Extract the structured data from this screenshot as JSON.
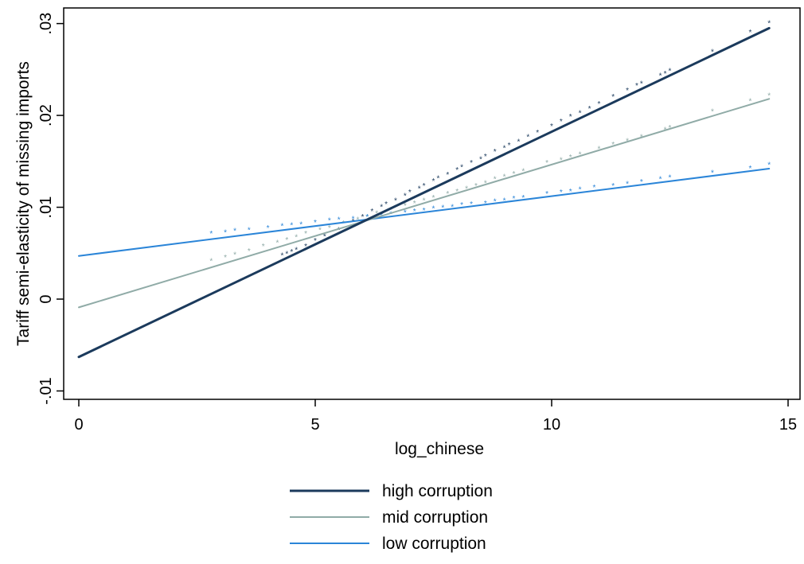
{
  "chart_data": {
    "type": "line",
    "xlabel": "log_chinese",
    "ylabel": "Tariff semi-elasticity of missing imports",
    "xlim": [
      0,
      15
    ],
    "ylim": [
      -0.012,
      0.031
    ],
    "xticks": [
      0,
      5,
      10,
      15
    ],
    "xtick_labels": [
      "0",
      "5",
      "10",
      "15"
    ],
    "yticks": [
      -0.01,
      0,
      0.01,
      0.02,
      0.03
    ],
    "ytick_labels": [
      "-.01",
      "0",
      ".01",
      ".02",
      ".03"
    ],
    "grid": false,
    "legend_position": "bottom",
    "series": [
      {
        "name": "high corruption",
        "color": "#1b3a5c",
        "line_width": 3,
        "fit": {
          "x": [
            0,
            14.6
          ],
          "y": [
            -0.0063,
            0.0295
          ]
        },
        "points": {
          "x": [
            4.3,
            4.4,
            4.5,
            4.6,
            4.8,
            5.0,
            5.2,
            5.5,
            5.8,
            6.0,
            6.2,
            6.4,
            6.5,
            6.7,
            6.9,
            7.0,
            7.2,
            7.3,
            7.5,
            7.6,
            7.8,
            8.0,
            8.1,
            8.3,
            8.5,
            8.6,
            8.8,
            9.0,
            9.1,
            9.3,
            9.5,
            9.7,
            10.0,
            10.2,
            10.4,
            10.6,
            10.8,
            11.0,
            11.3,
            11.6,
            11.8,
            11.9,
            12.3,
            12.4,
            12.5,
            13.4,
            14.2,
            14.6
          ],
          "y": [
            0.0048,
            0.005,
            0.0052,
            0.0054,
            0.0058,
            0.0064,
            0.0069,
            0.0076,
            0.0085,
            0.009,
            0.0096,
            0.0101,
            0.0104,
            0.0108,
            0.0113,
            0.0117,
            0.0121,
            0.0124,
            0.0129,
            0.0132,
            0.0136,
            0.0141,
            0.0144,
            0.0149,
            0.0153,
            0.0156,
            0.0161,
            0.0165,
            0.0168,
            0.0172,
            0.0177,
            0.0182,
            0.0189,
            0.0194,
            0.0199,
            0.0203,
            0.0208,
            0.0213,
            0.0221,
            0.0228,
            0.0233,
            0.0235,
            0.0244,
            0.0246,
            0.0249,
            0.027,
            0.0291,
            0.0301
          ]
        }
      },
      {
        "name": "mid corruption",
        "color": "#90aba7",
        "line_width": 2,
        "fit": {
          "x": [
            0,
            14.6
          ],
          "y": [
            -0.0009,
            0.0218
          ]
        },
        "points": {
          "x": [
            2.8,
            3.1,
            3.3,
            3.6,
            3.9,
            4.2,
            4.4,
            4.6,
            4.8,
            5.1,
            5.3,
            5.6,
            5.9,
            6.1,
            6.3,
            6.6,
            6.9,
            7.1,
            7.3,
            7.5,
            7.8,
            8.0,
            8.2,
            8.4,
            8.6,
            8.8,
            9.0,
            9.2,
            9.4,
            9.9,
            10.2,
            10.4,
            10.6,
            11.0,
            11.3,
            11.6,
            11.9,
            12.4,
            12.5,
            13.4,
            14.2,
            14.6
          ],
          "y": [
            0.0042,
            0.0046,
            0.0049,
            0.0053,
            0.0058,
            0.0062,
            0.0065,
            0.0068,
            0.0072,
            0.0076,
            0.0078,
            0.0083,
            0.0087,
            0.009,
            0.0094,
            0.0098,
            0.0102,
            0.0105,
            0.0108,
            0.0111,
            0.0115,
            0.0118,
            0.0121,
            0.0124,
            0.0127,
            0.0131,
            0.0134,
            0.0137,
            0.014,
            0.0149,
            0.0152,
            0.0155,
            0.0158,
            0.0164,
            0.0169,
            0.0173,
            0.0177,
            0.0185,
            0.0187,
            0.0205,
            0.0216,
            0.0222
          ]
        }
      },
      {
        "name": "low corruption",
        "color": "#2b85d8",
        "line_width": 2,
        "fit": {
          "x": [
            0,
            14.6
          ],
          "y": [
            0.0047,
            0.0142
          ]
        },
        "points": {
          "x": [
            2.8,
            3.1,
            3.3,
            3.6,
            4.0,
            4.3,
            4.5,
            4.7,
            5.0,
            5.3,
            5.5,
            5.8,
            6.1,
            6.4,
            6.6,
            6.9,
            7.1,
            7.3,
            7.5,
            7.7,
            7.9,
            8.1,
            8.3,
            8.6,
            8.8,
            9.0,
            9.2,
            9.4,
            9.9,
            10.2,
            10.4,
            10.6,
            10.9,
            11.3,
            11.6,
            11.9,
            12.3,
            12.5,
            13.4,
            14.2,
            14.6
          ],
          "y": [
            0.0072,
            0.0073,
            0.0075,
            0.0076,
            0.0078,
            0.008,
            0.0081,
            0.0082,
            0.0084,
            0.0086,
            0.0087,
            0.0088,
            0.009,
            0.0092,
            0.0093,
            0.0095,
            0.0096,
            0.0097,
            0.0099,
            0.01,
            0.0101,
            0.0103,
            0.0104,
            0.0105,
            0.0107,
            0.0108,
            0.011,
            0.0111,
            0.0115,
            0.0117,
            0.0118,
            0.012,
            0.0122,
            0.0124,
            0.0126,
            0.0128,
            0.0131,
            0.0133,
            0.0138,
            0.0143,
            0.0147
          ]
        }
      }
    ]
  }
}
